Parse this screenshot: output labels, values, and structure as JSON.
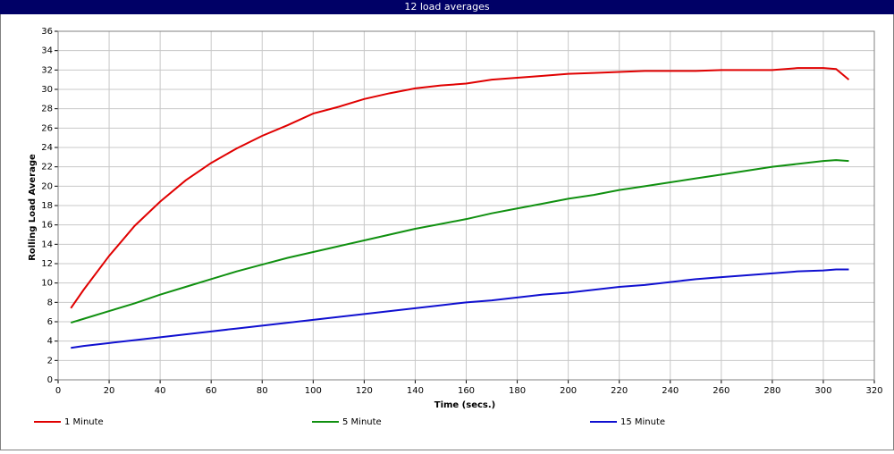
{
  "chart_data": {
    "type": "line",
    "title": "12 load averages",
    "x_label": "Time (secs.)",
    "y_label": "Rolling Load Average",
    "x": [
      5,
      10,
      20,
      30,
      40,
      50,
      60,
      70,
      80,
      90,
      100,
      110,
      120,
      130,
      140,
      150,
      160,
      170,
      180,
      190,
      200,
      210,
      220,
      230,
      240,
      250,
      260,
      270,
      280,
      290,
      300,
      305,
      310
    ],
    "series": [
      {
        "name": "1 Minute",
        "color": "#e00000",
        "values": [
          7.4,
          9.3,
          12.8,
          15.9,
          18.4,
          20.6,
          22.4,
          23.9,
          25.2,
          26.3,
          27.5,
          28.2,
          29.0,
          29.6,
          30.1,
          30.4,
          30.6,
          31.0,
          31.2,
          31.4,
          31.6,
          31.7,
          31.8,
          31.9,
          31.9,
          31.9,
          32.0,
          32.0,
          32.0,
          32.2,
          32.2,
          32.1,
          31.0
        ]
      },
      {
        "name": "5 Minute",
        "color": "#109010",
        "values": [
          5.9,
          6.3,
          7.1,
          7.9,
          8.8,
          9.6,
          10.4,
          11.2,
          11.9,
          12.6,
          13.2,
          13.8,
          14.4,
          15.0,
          15.6,
          16.1,
          16.6,
          17.2,
          17.7,
          18.2,
          18.7,
          19.1,
          19.6,
          20.0,
          20.4,
          20.8,
          21.2,
          21.6,
          22.0,
          22.3,
          22.6,
          22.7,
          22.6
        ]
      },
      {
        "name": "15 Minute",
        "color": "#1010d0",
        "values": [
          3.3,
          3.5,
          3.8,
          4.1,
          4.4,
          4.7,
          5.0,
          5.3,
          5.6,
          5.9,
          6.2,
          6.5,
          6.8,
          7.1,
          7.4,
          7.7,
          8.0,
          8.2,
          8.5,
          8.8,
          9.0,
          9.3,
          9.6,
          9.8,
          10.1,
          10.4,
          10.6,
          10.8,
          11.0,
          11.2,
          11.3,
          11.4,
          11.4
        ]
      }
    ],
    "xlim": [
      0,
      320
    ],
    "xticks": [
      0,
      20,
      40,
      60,
      80,
      100,
      120,
      140,
      160,
      180,
      200,
      220,
      240,
      260,
      280,
      300,
      320
    ],
    "ylim": [
      0,
      36
    ],
    "yticks": [
      0,
      2,
      4,
      6,
      8,
      10,
      12,
      14,
      16,
      18,
      20,
      22,
      24,
      26,
      28,
      30,
      32,
      34,
      36
    ],
    "grid": true,
    "legend": "bottom"
  }
}
